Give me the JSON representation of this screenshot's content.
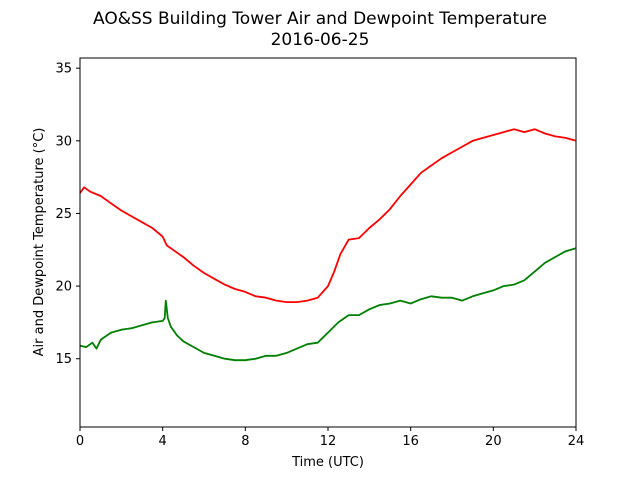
{
  "chart_data": {
    "type": "line",
    "title": "AO&SS Building Tower Air and Dewpoint Temperature",
    "subtitle": "2016-06-25",
    "xlabel": "Time (UTC)",
    "ylabel": "Air and Dewpoint Temperature (°C)",
    "xlim": [
      0,
      24
    ],
    "ylim": [
      10.3,
      35.7
    ],
    "xticks": [
      0,
      4,
      8,
      12,
      16,
      20,
      24
    ],
    "yticks": [
      15,
      20,
      25,
      30,
      35
    ],
    "grid": false,
    "series": [
      {
        "color": "#ff0000",
        "x": [
          0,
          0.2,
          0.5,
          1,
          1.5,
          2,
          2.5,
          3,
          3.5,
          4,
          4.2,
          4.5,
          5,
          5.5,
          6,
          6.5,
          7,
          7.5,
          8,
          8.5,
          9,
          9.5,
          10,
          10.5,
          11,
          11.5,
          12,
          12.3,
          12.6,
          13,
          13.5,
          14,
          14.5,
          15,
          15.5,
          16,
          16.5,
          17,
          17.5,
          18,
          18.5,
          19,
          19.5,
          20,
          20.5,
          21,
          21.5,
          22,
          22.5,
          23,
          23.5,
          24
        ],
        "values": [
          26.4,
          26.8,
          26.5,
          26.2,
          25.7,
          25.2,
          24.8,
          24.4,
          24.0,
          23.4,
          22.8,
          22.5,
          22.0,
          21.4,
          20.9,
          20.5,
          20.1,
          19.8,
          19.6,
          19.3,
          19.2,
          19.0,
          18.9,
          18.9,
          19.0,
          19.2,
          20.0,
          21.0,
          22.2,
          23.2,
          23.3,
          24.0,
          24.6,
          25.3,
          26.2,
          27.0,
          27.8,
          28.3,
          28.8,
          29.2,
          29.6,
          30.0,
          30.2,
          30.4,
          30.6,
          30.8,
          30.6,
          30.8,
          30.5,
          30.3,
          30.2,
          30.0
        ]
      },
      {
        "color": "#008000",
        "x": [
          0,
          0.3,
          0.6,
          0.8,
          1,
          1.5,
          2,
          2.5,
          3,
          3.5,
          4,
          4.1,
          4.15,
          4.25,
          4.4,
          4.7,
          5,
          5.5,
          6,
          6.5,
          7,
          7.5,
          8,
          8.5,
          9,
          9.5,
          10,
          10.5,
          11,
          11.5,
          12,
          12.5,
          13,
          13.5,
          14,
          14.5,
          15,
          15.5,
          16,
          16.5,
          17,
          17.5,
          18,
          18.5,
          19,
          19.5,
          20,
          20.5,
          21,
          21.5,
          22,
          22.5,
          23,
          23.5,
          24
        ],
        "values": [
          15.9,
          15.8,
          16.1,
          15.7,
          16.3,
          16.8,
          17.0,
          17.1,
          17.3,
          17.5,
          17.6,
          17.8,
          19.0,
          17.8,
          17.2,
          16.6,
          16.2,
          15.8,
          15.4,
          15.2,
          15.0,
          14.9,
          14.9,
          15.0,
          15.2,
          15.2,
          15.4,
          15.7,
          16.0,
          16.1,
          16.8,
          17.5,
          18.0,
          18.0,
          18.4,
          18.7,
          18.8,
          19.0,
          18.8,
          19.1,
          19.3,
          19.2,
          19.2,
          19.0,
          19.3,
          19.5,
          19.7,
          20.0,
          20.1,
          20.4,
          21.0,
          21.6,
          22.0,
          22.4,
          22.6
        ]
      }
    ]
  }
}
